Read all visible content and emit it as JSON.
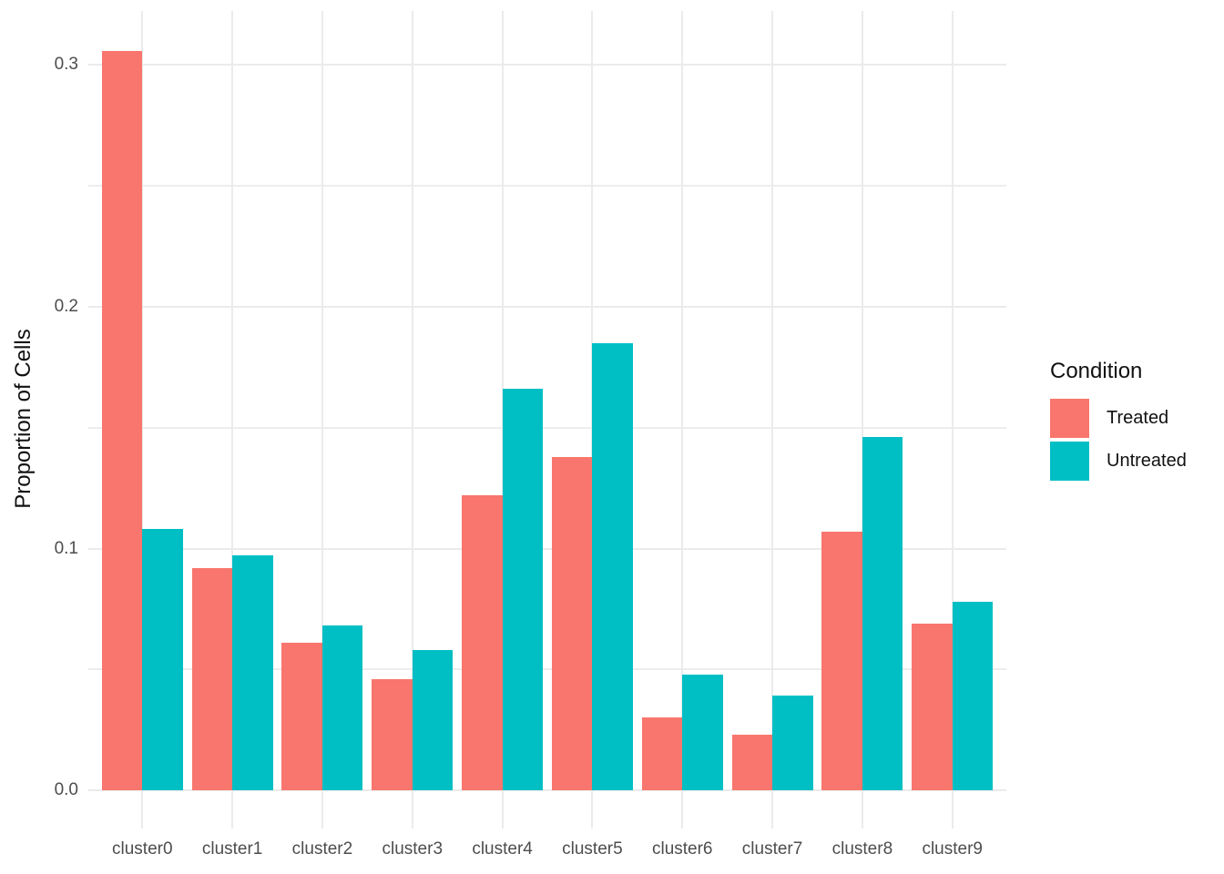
{
  "chart_data": {
    "type": "bar",
    "title": "",
    "xlabel": "",
    "ylabel": "Proportion of Cells",
    "categories": [
      "cluster0",
      "cluster1",
      "cluster2",
      "cluster3",
      "cluster4",
      "cluster5",
      "cluster6",
      "cluster7",
      "cluster8",
      "cluster9"
    ],
    "series": [
      {
        "name": "Treated",
        "color": "#F8766D",
        "values": [
          0.306,
          0.092,
          0.061,
          0.046,
          0.122,
          0.138,
          0.03,
          0.023,
          0.107,
          0.069
        ]
      },
      {
        "name": "Untreated",
        "color": "#00BFC4",
        "values": [
          0.108,
          0.097,
          0.068,
          0.058,
          0.166,
          0.185,
          0.048,
          0.039,
          0.146,
          0.078
        ]
      }
    ],
    "y_ticks": [
      0.0,
      0.1,
      0.2,
      0.3
    ],
    "y_tick_labels": [
      "0.0",
      "0.1",
      "0.2",
      "0.3"
    ],
    "y_minor_ticks": [
      0.05,
      0.15,
      0.25
    ],
    "ylim": [
      -0.0158,
      0.3224
    ],
    "grid": true,
    "legend": {
      "title": "Condition",
      "position": "right",
      "entries": [
        {
          "label": "Treated",
          "color": "#F8766D"
        },
        {
          "label": "Untreated",
          "color": "#00BFC4"
        }
      ]
    },
    "bar_layout": {
      "outer_pad_units": 0.6,
      "dodge_width": 0.9
    }
  },
  "colors": {
    "background": "#FFFFFF",
    "grid_major": "#EBEBEB",
    "grid_minor": "#EDEDED",
    "tick_label": "#4D4D4D",
    "axis_title": "#111111"
  }
}
